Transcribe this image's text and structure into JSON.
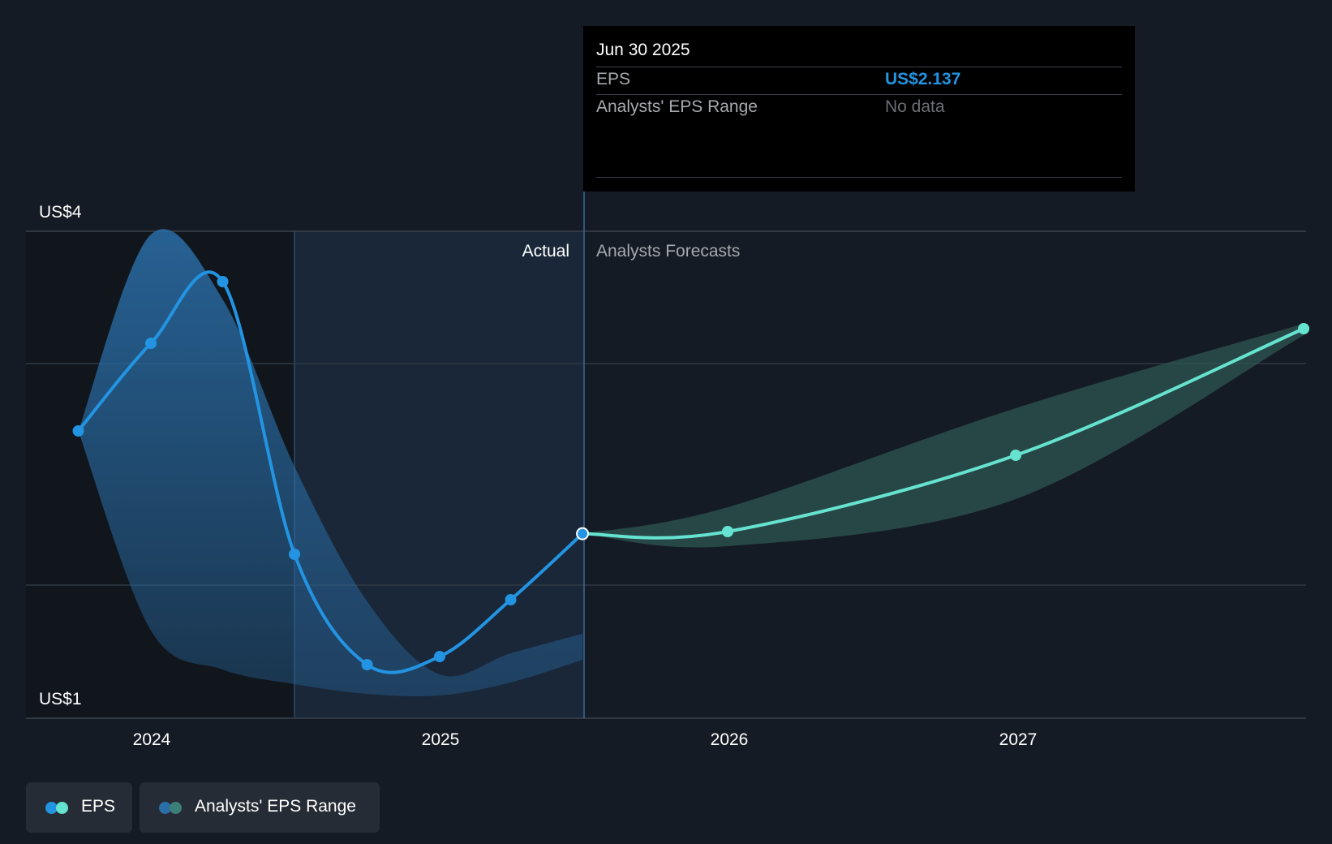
{
  "chart_data": {
    "type": "line",
    "y_axis": {
      "min_label": "US$1",
      "max_label": "US$4",
      "ylim": [
        1,
        4
      ]
    },
    "x_ticks": [
      "2024",
      "2025",
      "2026",
      "2027"
    ],
    "section_labels": {
      "actual": "Actual",
      "forecast": "Analysts Forecasts"
    },
    "series": [
      {
        "name": "EPS",
        "kind": "actual",
        "color": "#2394e2",
        "x": [
          "2023-09-30",
          "2023-12-31",
          "2024-03-31",
          "2024-06-30",
          "2024-09-30",
          "2024-12-31",
          "2025-03-31",
          "2025-06-30"
        ],
        "y": [
          2.77,
          3.31,
          3.69,
          2.01,
          1.33,
          1.38,
          1.73,
          2.137
        ]
      },
      {
        "name": "EPS",
        "kind": "forecast",
        "color": "#66e3d0",
        "x": [
          "2025-06-30",
          "2025-12-31",
          "2026-12-31",
          "2027-12-31"
        ],
        "y": [
          2.137,
          2.15,
          2.62,
          3.4
        ]
      }
    ],
    "range_bands": [
      {
        "name": "Analysts' EPS Range",
        "kind": "past",
        "color": "#2a6ea8",
        "x": [
          "2023-09-30",
          "2023-12-31",
          "2024-03-31",
          "2024-06-30",
          "2024-09-30",
          "2024-12-31",
          "2025-03-31",
          "2025-06-30"
        ],
        "upper": [
          2.77,
          3.98,
          3.58,
          2.55,
          1.72,
          1.27,
          1.4,
          1.52
        ],
        "lower": [
          2.77,
          1.54,
          1.3,
          1.21,
          1.15,
          1.14,
          1.22,
          1.36
        ]
      },
      {
        "name": "Analysts' EPS Range",
        "kind": "forecast",
        "color": "#2d5752",
        "x": [
          "2025-06-30",
          "2025-12-31",
          "2026-12-31",
          "2027-12-31"
        ],
        "upper": [
          2.137,
          2.3,
          2.91,
          3.43
        ],
        "lower": [
          2.137,
          2.06,
          2.35,
          3.36
        ]
      }
    ],
    "grid": true,
    "legend": "bottom-left"
  },
  "tooltip": {
    "date": "Jun 30 2025",
    "eps_label": "EPS",
    "eps_value": "US$2.137",
    "range_label": "Analysts' EPS Range",
    "range_value": "No data"
  },
  "legend": {
    "eps_label": "EPS",
    "range_label": "Analysts' EPS Range"
  },
  "colors": {
    "background": "#151b24",
    "eps_actual": "#2394e2",
    "eps_forecast": "#66e3d0",
    "range_past": "#2a6ea8",
    "range_forecast": "#2d5752",
    "grid": "#2f3843",
    "muted_text": "#a6a9ae"
  }
}
